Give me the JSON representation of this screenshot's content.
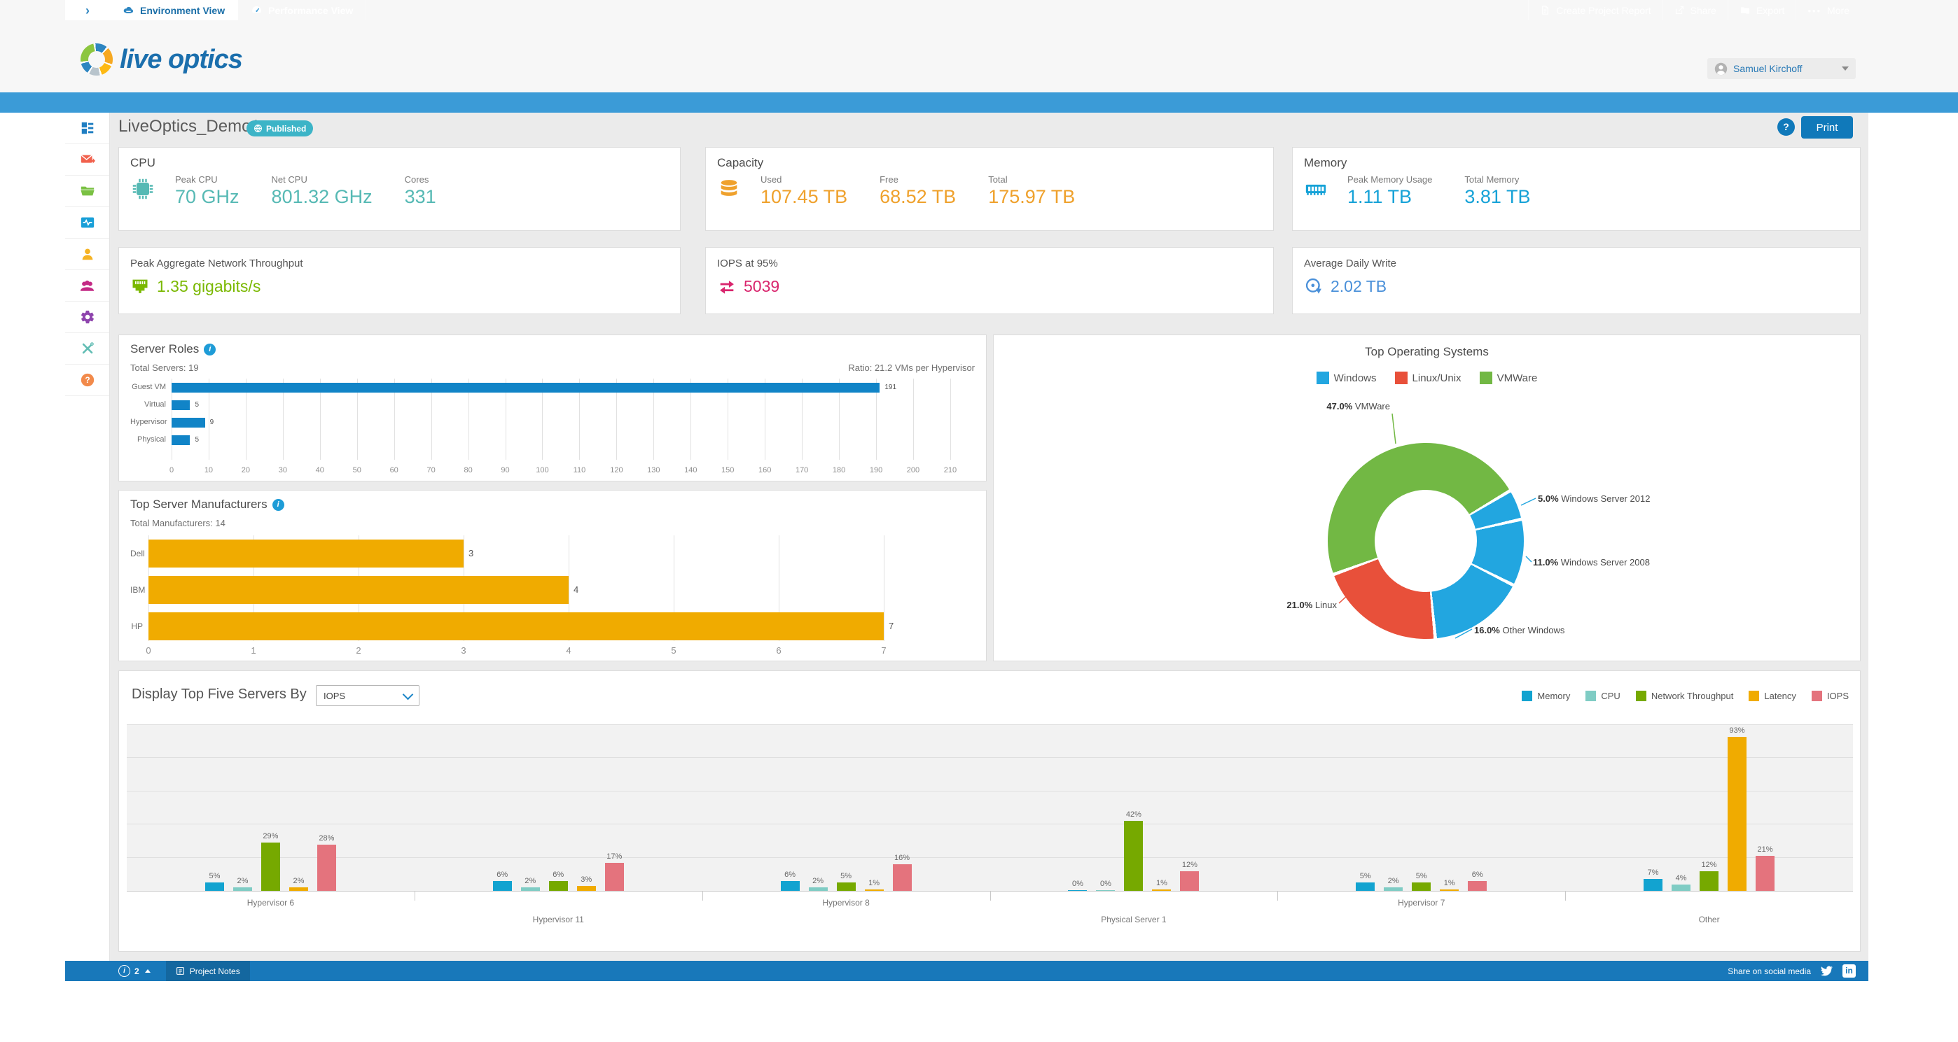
{
  "brand": {
    "name": "live optics"
  },
  "header": {
    "user_name": "Samuel Kirchoff"
  },
  "nav": {
    "tabs": [
      {
        "label": "Environment View",
        "icon": "cloud-server-icon",
        "active": true
      },
      {
        "label": "Performance View",
        "icon": "gauge-icon",
        "active": false
      }
    ],
    "actions": [
      {
        "label": "Create Project Report",
        "icon": "report-icon"
      },
      {
        "label": "Share",
        "icon": "share-icon"
      },
      {
        "label": "Export",
        "icon": "export-folder-icon"
      },
      {
        "label": "More",
        "icon": "ellipsis-icon"
      }
    ]
  },
  "sidebar": {
    "icons": [
      "dashboard",
      "mail-forward",
      "folder",
      "activity-monitor",
      "user",
      "user-group",
      "settings-gear",
      "tools",
      "help"
    ]
  },
  "page": {
    "title": "LiveOptics_Demo1",
    "status_badge": "Published",
    "print_label": "Print"
  },
  "summary_cards": {
    "cpu": {
      "title": "CPU",
      "accent": "#56b9b4",
      "metrics": [
        {
          "label": "Peak CPU",
          "value": "70 GHz"
        },
        {
          "label": "Net CPU",
          "value": "801.32 GHz"
        },
        {
          "label": "Cores",
          "value": "331"
        }
      ]
    },
    "capacity": {
      "title": "Capacity",
      "accent": "#efa12c",
      "metrics": [
        {
          "label": "Used",
          "value": "107.45 TB"
        },
        {
          "label": "Free",
          "value": "68.52 TB"
        },
        {
          "label": "Total",
          "value": "175.97 TB"
        }
      ]
    },
    "memory": {
      "title": "Memory",
      "accent": "#16a2d7",
      "metrics": [
        {
          "label": "Peak Memory Usage",
          "value": "1.11 TB"
        },
        {
          "label": "Total Memory",
          "value": "3.81 TB"
        }
      ]
    },
    "network": {
      "title": "Peak Aggregate Network Throughput",
      "value": "1.35 gigabits/s",
      "accent": "#7ab800"
    },
    "iops": {
      "title": "IOPS at 95%",
      "value": "5039",
      "accent": "#d9256d"
    },
    "daily_write": {
      "title": "Average Daily Write",
      "value": "2.02 TB",
      "accent": "#4a90d9"
    }
  },
  "chart_data": [
    {
      "id": "server-roles",
      "type": "bar",
      "orientation": "horizontal",
      "title": "Server Roles",
      "subtitle_left": "Total Servers: 19",
      "subtitle_right": "Ratio: 21.2 VMs per Hypervisor",
      "categories": [
        "Guest VM",
        "Virtual",
        "Hypervisor",
        "Physical"
      ],
      "values": [
        191,
        5,
        9,
        5
      ],
      "xlim": [
        0,
        217
      ],
      "xtick_step": 10,
      "xtick_max": 210,
      "bar_color": "#1184c7",
      "grid": true
    },
    {
      "id": "top-manufacturers",
      "type": "bar",
      "orientation": "horizontal",
      "title": "Top Server Manufacturers",
      "subtitle_left": "Total Manufacturers: 14",
      "categories": [
        "Dell",
        "IBM",
        "HP"
      ],
      "values": [
        3,
        4,
        7
      ],
      "xlim": [
        0,
        7.88
      ],
      "xtick_step": 1,
      "xtick_max": 7,
      "bar_color": "#f0ab00",
      "grid": true
    },
    {
      "id": "top-operating-systems",
      "type": "pie",
      "donut": true,
      "title": "Top Operating Systems",
      "legend_position": "top-center",
      "legend": [
        {
          "label": "Windows",
          "color": "#22a6e0"
        },
        {
          "label": "Linux/Unix",
          "color": "#e8503a"
        },
        {
          "label": "VMWare",
          "color": "#72b844"
        }
      ],
      "start_angle_deg": 250,
      "slices": [
        {
          "label": "VMWare",
          "pct": 47.0,
          "color": "#72b844"
        },
        {
          "label": "Windows Server 2012",
          "pct": 5.0,
          "color": "#22a6e0"
        },
        {
          "label": "Windows Server 2008",
          "pct": 11.0,
          "color": "#22a6e0"
        },
        {
          "label": "Other Windows",
          "pct": 16.0,
          "color": "#22a6e0"
        },
        {
          "label": "Linux",
          "pct": 21.0,
          "color": "#e8503a"
        }
      ]
    },
    {
      "id": "top-five-servers",
      "type": "bar",
      "grouped": true,
      "control_label": "Display Top Five Servers By",
      "control_value": "IOPS",
      "unit": "%",
      "ylim": [
        0,
        100
      ],
      "grid": true,
      "legend_position": "top-right",
      "series": [
        {
          "name": "Memory",
          "color": "#12a3d0"
        },
        {
          "name": "CPU",
          "color": "#7fccc4"
        },
        {
          "name": "Network Throughput",
          "color": "#76a900"
        },
        {
          "name": "Latency",
          "color": "#f0ab00"
        },
        {
          "name": "IOPS",
          "color": "#e4737d"
        }
      ],
      "categories": [
        "Hypervisor 6",
        "Hypervisor 11",
        "Hypervisor 8",
        "Physical Server 1",
        "Hypervisor 7",
        "Other"
      ],
      "values": [
        [
          5,
          2,
          29,
          2,
          28
        ],
        [
          6,
          2,
          6,
          3,
          17
        ],
        [
          6,
          2,
          5,
          1,
          16
        ],
        [
          0,
          0,
          42,
          1,
          12
        ],
        [
          5,
          2,
          5,
          1,
          6
        ],
        [
          7,
          4,
          12,
          93,
          21
        ]
      ]
    }
  ],
  "footer": {
    "notification_count": "2",
    "project_notes": "Project Notes",
    "share_text": "Share on social media"
  }
}
